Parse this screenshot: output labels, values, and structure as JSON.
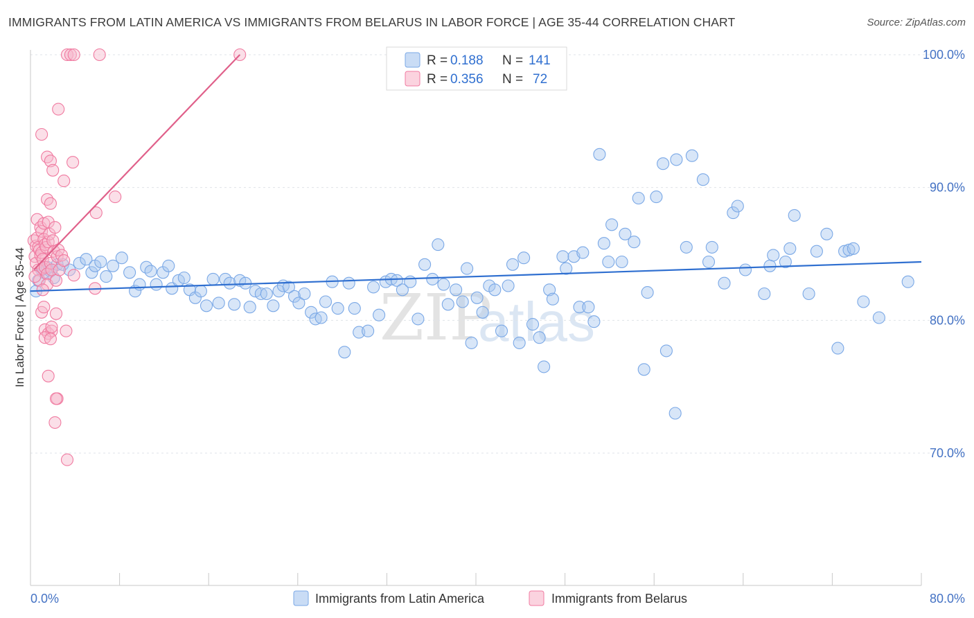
{
  "title": "IMMIGRANTS FROM LATIN AMERICA VS IMMIGRANTS FROM BELARUS IN LABOR FORCE | AGE 35-44 CORRELATION CHART",
  "source": "Source: ZipAtlas.com",
  "watermark": {
    "part1": "ZIP",
    "part2": "atlas"
  },
  "legend_top": {
    "rows": [
      {
        "r_label": "R =",
        "r_value": "0.188",
        "n_label": "N =",
        "n_value": "141",
        "color": "#a9c8ef"
      },
      {
        "r_label": "R =",
        "r_value": "0.356",
        "n_label": "N =",
        "n_value": "72",
        "color": "#f6b8cb"
      }
    ]
  },
  "legend_bottom": [
    {
      "label": "Immigrants from Latin America",
      "color": "#a9c8ef"
    },
    {
      "label": "Immigrants from Belarus",
      "color": "#f6b8cb"
    }
  ],
  "chart_data": {
    "type": "scatter",
    "xlabel": "",
    "ylabel": "In Labor Force | Age 35-44",
    "xlim": [
      0,
      80
    ],
    "ylim": [
      60,
      100
    ],
    "x_tick_labels": [
      {
        "value": 0,
        "label": "0.0%"
      },
      {
        "value": 80,
        "label": "80.0%"
      }
    ],
    "y_tick_labels": [
      {
        "value": 100,
        "label": "100.0%"
      },
      {
        "value": 90,
        "label": "90.0%"
      },
      {
        "value": 80,
        "label": "80.0%"
      },
      {
        "value": 70,
        "label": "70.0%"
      }
    ],
    "grid": true,
    "series": [
      {
        "name": "Immigrants from Latin America",
        "color": "#7aa8e6",
        "line_color": "#2f6fd0",
        "trend": {
          "x": [
            0,
            80
          ],
          "y": [
            82.2,
            84.4
          ]
        },
        "points": [
          [
            0.5,
            82.2
          ],
          [
            0.7,
            83.0
          ],
          [
            1.0,
            83.8
          ],
          [
            1.2,
            83.6
          ],
          [
            1.5,
            84.0
          ],
          [
            1.8,
            83.7
          ],
          [
            2.1,
            83.2
          ],
          [
            2.4,
            84.2
          ],
          [
            2.9,
            84.2
          ],
          [
            3.5,
            83.8
          ],
          [
            4.4,
            84.3
          ],
          [
            5.0,
            84.6
          ],
          [
            5.5,
            83.6
          ],
          [
            5.8,
            84.1
          ],
          [
            6.3,
            84.4
          ],
          [
            6.8,
            83.3
          ],
          [
            7.4,
            84.1
          ],
          [
            8.2,
            84.7
          ],
          [
            8.9,
            83.6
          ],
          [
            9.4,
            82.2
          ],
          [
            9.8,
            82.7
          ],
          [
            10.4,
            84.0
          ],
          [
            10.8,
            83.7
          ],
          [
            11.3,
            82.7
          ],
          [
            11.9,
            83.6
          ],
          [
            12.4,
            84.1
          ],
          [
            12.7,
            82.4
          ],
          [
            13.3,
            83.0
          ],
          [
            13.8,
            83.2
          ],
          [
            14.3,
            82.3
          ],
          [
            14.8,
            81.7
          ],
          [
            15.3,
            82.2
          ],
          [
            15.8,
            81.1
          ],
          [
            16.4,
            83.1
          ],
          [
            16.9,
            81.3
          ],
          [
            17.5,
            83.1
          ],
          [
            17.9,
            82.8
          ],
          [
            18.3,
            81.2
          ],
          [
            18.8,
            83.0
          ],
          [
            19.3,
            82.8
          ],
          [
            19.7,
            81.0
          ],
          [
            20.2,
            82.2
          ],
          [
            20.7,
            82.0
          ],
          [
            21.2,
            82.0
          ],
          [
            21.8,
            81.1
          ],
          [
            22.3,
            82.2
          ],
          [
            22.7,
            82.6
          ],
          [
            23.2,
            82.5
          ],
          [
            23.7,
            81.8
          ],
          [
            24.1,
            81.3
          ],
          [
            24.6,
            82.0
          ],
          [
            25.2,
            80.6
          ],
          [
            25.6,
            80.1
          ],
          [
            26.1,
            80.2
          ],
          [
            26.5,
            81.4
          ],
          [
            27.1,
            82.9
          ],
          [
            27.6,
            80.9
          ],
          [
            28.2,
            77.6
          ],
          [
            28.6,
            82.8
          ],
          [
            29.1,
            80.9
          ],
          [
            29.5,
            79.1
          ],
          [
            30.3,
            79.2
          ],
          [
            30.8,
            82.5
          ],
          [
            31.3,
            80.4
          ],
          [
            31.9,
            82.9
          ],
          [
            32.4,
            83.1
          ],
          [
            32.9,
            83.0
          ],
          [
            33.4,
            82.3
          ],
          [
            34.1,
            82.9
          ],
          [
            34.8,
            80.1
          ],
          [
            35.4,
            84.2
          ],
          [
            36.1,
            83.1
          ],
          [
            36.6,
            85.7
          ],
          [
            37.1,
            82.7
          ],
          [
            37.5,
            81.2
          ],
          [
            38.2,
            82.3
          ],
          [
            38.8,
            81.4
          ],
          [
            39.2,
            83.9
          ],
          [
            39.6,
            78.3
          ],
          [
            40.1,
            81.7
          ],
          [
            40.6,
            80.6
          ],
          [
            41.2,
            82.6
          ],
          [
            41.7,
            82.3
          ],
          [
            42.3,
            79.2
          ],
          [
            42.9,
            82.6
          ],
          [
            43.3,
            84.2
          ],
          [
            44.3,
            84.7
          ],
          [
            43.9,
            78.3
          ],
          [
            45.1,
            79.7
          ],
          [
            45.7,
            78.7
          ],
          [
            46.1,
            76.5
          ],
          [
            46.6,
            82.3
          ],
          [
            46.9,
            81.6
          ],
          [
            47.8,
            84.8
          ],
          [
            48.1,
            83.9
          ],
          [
            48.8,
            84.8
          ],
          [
            49.6,
            85.1
          ],
          [
            49.3,
            81.0
          ],
          [
            50.1,
            81.0
          ],
          [
            50.6,
            79.9
          ],
          [
            51.1,
            92.5
          ],
          [
            51.5,
            85.8
          ],
          [
            51.9,
            84.4
          ],
          [
            52.2,
            87.2
          ],
          [
            53.1,
            84.4
          ],
          [
            53.4,
            86.5
          ],
          [
            54.2,
            85.9
          ],
          [
            54.6,
            89.2
          ],
          [
            55.1,
            76.3
          ],
          [
            55.4,
            82.1
          ],
          [
            56.2,
            89.3
          ],
          [
            56.8,
            91.8
          ],
          [
            57.1,
            77.7
          ],
          [
            57.9,
            73.0
          ],
          [
            58.0,
            92.1
          ],
          [
            58.9,
            85.5
          ],
          [
            59.4,
            92.4
          ],
          [
            60.4,
            90.6
          ],
          [
            60.9,
            84.4
          ],
          [
            61.2,
            85.5
          ],
          [
            62.3,
            82.8
          ],
          [
            63.1,
            88.1
          ],
          [
            63.5,
            88.6
          ],
          [
            64.2,
            83.8
          ],
          [
            65.9,
            82.0
          ],
          [
            66.4,
            84.1
          ],
          [
            66.7,
            84.9
          ],
          [
            67.8,
            84.4
          ],
          [
            68.2,
            85.4
          ],
          [
            68.6,
            87.9
          ],
          [
            69.9,
            82.0
          ],
          [
            70.6,
            85.2
          ],
          [
            71.5,
            86.5
          ],
          [
            72.5,
            77.9
          ],
          [
            73.1,
            85.2
          ],
          [
            73.5,
            85.3
          ],
          [
            73.9,
            85.4
          ],
          [
            74.8,
            81.4
          ],
          [
            76.2,
            80.2
          ],
          [
            78.8,
            82.9
          ]
        ]
      },
      {
        "name": "Immigrants from Belarus",
        "color": "#f07aa0",
        "line_color": "#e0608a",
        "trend": {
          "x": [
            0.3,
            18.8
          ],
          "y": [
            83.8,
            100.0
          ]
        },
        "points": [
          [
            0.3,
            86.0
          ],
          [
            0.4,
            84.8
          ],
          [
            0.5,
            85.6
          ],
          [
            0.5,
            84.3
          ],
          [
            0.6,
            87.6
          ],
          [
            0.6,
            86.2
          ],
          [
            0.7,
            85.5
          ],
          [
            0.7,
            83.8
          ],
          [
            0.8,
            85.3
          ],
          [
            0.8,
            83.0
          ],
          [
            0.9,
            87.0
          ],
          [
            0.9,
            84.9
          ],
          [
            1.0,
            86.7
          ],
          [
            1.0,
            85.1
          ],
          [
            1.1,
            84.6
          ],
          [
            1.1,
            83.9
          ],
          [
            1.2,
            87.3
          ],
          [
            1.2,
            86.1
          ],
          [
            1.3,
            85.7
          ],
          [
            1.3,
            84.0
          ],
          [
            1.4,
            85.5
          ],
          [
            1.5,
            83.5
          ],
          [
            1.5,
            82.7
          ],
          [
            1.6,
            87.4
          ],
          [
            1.6,
            85.9
          ],
          [
            1.7,
            86.5
          ],
          [
            1.8,
            84.3
          ],
          [
            1.9,
            83.8
          ],
          [
            2.0,
            86.0
          ],
          [
            2.1,
            85.2
          ],
          [
            2.2,
            87.0
          ],
          [
            2.3,
            83.0
          ],
          [
            2.4,
            84.8
          ],
          [
            1.0,
            94.0
          ],
          [
            1.5,
            92.3
          ],
          [
            1.8,
            92.0
          ],
          [
            2.0,
            91.3
          ],
          [
            2.5,
            95.9
          ],
          [
            3.0,
            90.5
          ],
          [
            3.8,
            91.9
          ],
          [
            1.5,
            89.1
          ],
          [
            1.8,
            88.8
          ],
          [
            5.9,
            88.1
          ],
          [
            7.6,
            89.3
          ],
          [
            1.0,
            80.6
          ],
          [
            1.2,
            81.0
          ],
          [
            1.3,
            79.3
          ],
          [
            1.6,
            79.0
          ],
          [
            1.9,
            79.2
          ],
          [
            2.3,
            80.5
          ],
          [
            3.2,
            79.2
          ],
          [
            1.6,
            75.8
          ],
          [
            2.4,
            74.1
          ],
          [
            2.3,
            74.1
          ],
          [
            2.2,
            72.3
          ],
          [
            3.3,
            69.5
          ],
          [
            3.3,
            100.0
          ],
          [
            3.6,
            100.0
          ],
          [
            3.9,
            100.0
          ],
          [
            6.2,
            100.0
          ],
          [
            18.8,
            100.0
          ],
          [
            5.8,
            82.4
          ],
          [
            3.9,
            83.4
          ],
          [
            1.9,
            79.5
          ],
          [
            2.5,
            85.3
          ],
          [
            2.8,
            84.9
          ],
          [
            1.3,
            78.7
          ],
          [
            1.8,
            78.6
          ],
          [
            1.1,
            82.3
          ],
          [
            0.4,
            83.3
          ],
          [
            2.6,
            83.8
          ],
          [
            3.0,
            84.5
          ]
        ]
      }
    ]
  }
}
